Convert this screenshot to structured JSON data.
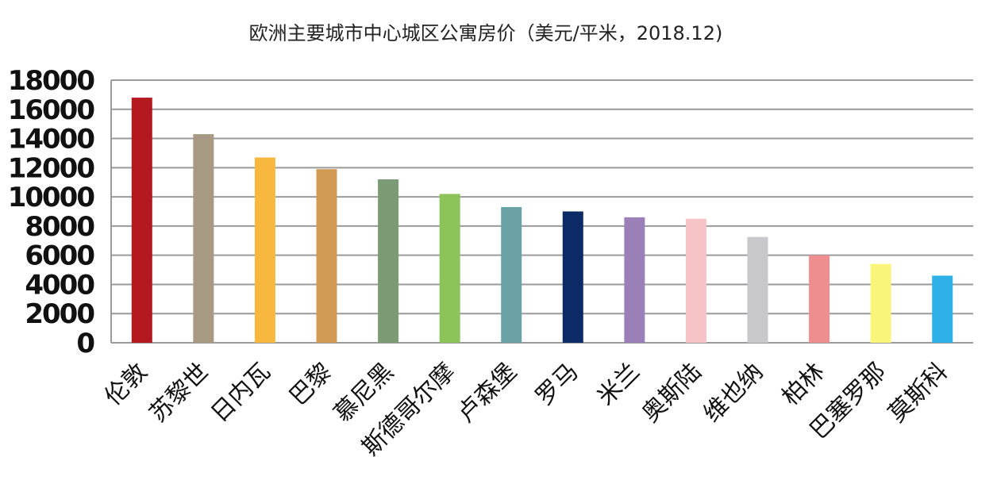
{
  "chart_data": {
    "type": "bar",
    "title": "欧洲主要城市中心城区公寓房价（美元/平米，2018.12)",
    "xlabel": "",
    "ylabel": "",
    "ylim": [
      0,
      18000
    ],
    "yticks": [
      0,
      2000,
      4000,
      6000,
      8000,
      10000,
      12000,
      14000,
      16000,
      18000
    ],
    "grid": true,
    "legend": "none",
    "categories": [
      "伦敦",
      "苏黎世",
      "日内瓦",
      "巴黎",
      "慕尼黑",
      "斯德哥尔摩",
      "卢森堡",
      "罗马",
      "米兰",
      "奥斯陆",
      "维也纳",
      "柏林",
      "巴塞罗那",
      "莫斯科"
    ],
    "values": [
      16800,
      14300,
      12700,
      11900,
      11200,
      10200,
      9300,
      9000,
      8600,
      8500,
      7250,
      6000,
      5400,
      4600
    ],
    "colors": [
      "#b3191f",
      "#a89a82",
      "#f8b840",
      "#d19b55",
      "#7b9b75",
      "#8cc45a",
      "#69a1a4",
      "#0c2a66",
      "#9a80b6",
      "#f6c3c6",
      "#c7c7cc",
      "#ef8e8e",
      "#fbf47a",
      "#2fb1e8"
    ]
  }
}
